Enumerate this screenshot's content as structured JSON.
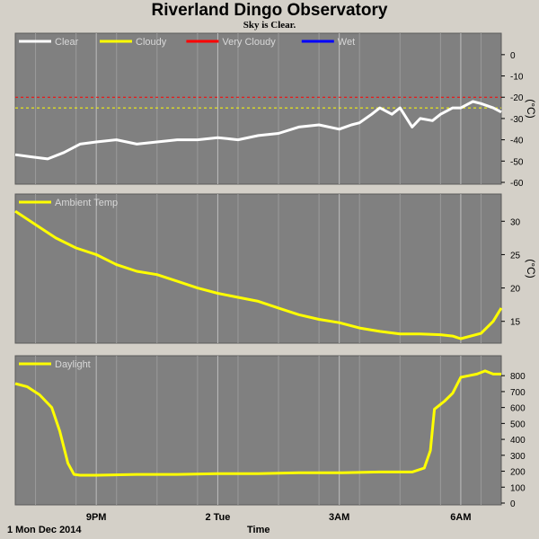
{
  "title": "Riverland Dingo Observatory",
  "subtitle": "Sky is Clear.",
  "footer": {
    "date_label": "1 Mon Dec 2014",
    "axis_label": "Time"
  },
  "colors": {
    "background": "#d4d0c8",
    "plot_background": "#808080",
    "grid": "#bdbdbd",
    "clear": "#ffffff",
    "cloudy": "#ffff00",
    "very_cloudy": "#ff0000",
    "wet": "#0000ff",
    "ambient": "#ffff00",
    "daylight": "#ffff00"
  },
  "chart_data": [
    {
      "type": "line",
      "name": "sky",
      "x_ticks": [
        "9PM",
        "2 Tue",
        "3AM",
        "6AM"
      ],
      "x_tick_hours": [
        21,
        24,
        27,
        30
      ],
      "xlim": [
        19.0,
        31.0
      ],
      "ylim": [
        -60,
        5
      ],
      "y_ticks": [
        0,
        -10,
        -20,
        -30,
        -40,
        -50,
        -60
      ],
      "unit": "(°C)",
      "legend": [
        "Clear",
        "Cloudy",
        "Very Cloudy",
        "Wet"
      ],
      "thresholds": [
        {
          "label": "Very Cloudy",
          "value": -20
        },
        {
          "label": "Cloudy",
          "value": -25
        }
      ],
      "series": [
        {
          "name": "Clear",
          "x": [
            19.0,
            19.4,
            19.8,
            20.2,
            20.6,
            21.0,
            21.5,
            22.0,
            22.5,
            23.0,
            23.5,
            24.0,
            24.5,
            25.0,
            25.5,
            26.0,
            26.5,
            27.0,
            27.3,
            27.5,
            27.8,
            28.0,
            28.3,
            28.5,
            28.8,
            29.0,
            29.3,
            29.5,
            29.8,
            30.0,
            30.3,
            30.5,
            30.8,
            31.0
          ],
          "y": [
            -47,
            -48,
            -49,
            -46,
            -42,
            -41,
            -40,
            -42,
            -41,
            -40,
            -40,
            -39,
            -40,
            -38,
            -37,
            -34,
            -33,
            -35,
            -33,
            -32,
            -28,
            -25,
            -28,
            -25,
            -34,
            -30,
            -31,
            -28,
            -25,
            -25,
            -22,
            -23,
            -25,
            -27
          ]
        }
      ]
    },
    {
      "type": "line",
      "name": "ambient",
      "x_ticks": [
        "9PM",
        "2 Tue",
        "3AM",
        "6AM"
      ],
      "xlim": [
        19.0,
        31.0
      ],
      "ylim": [
        12,
        33
      ],
      "y_ticks": [
        30,
        25,
        20,
        15
      ],
      "unit": "(°C)",
      "legend": [
        "Ambient Temp"
      ],
      "series": [
        {
          "name": "Ambient Temp",
          "x": [
            19.0,
            19.5,
            20.0,
            20.5,
            21.0,
            21.5,
            22.0,
            22.5,
            23.0,
            23.5,
            24.0,
            24.5,
            25.0,
            25.5,
            26.0,
            26.5,
            27.0,
            27.5,
            28.0,
            28.5,
            29.0,
            29.5,
            29.8,
            30.0,
            30.5,
            30.8,
            31.0
          ],
          "y": [
            31.5,
            29.5,
            27.5,
            26.0,
            25.0,
            23.5,
            22.5,
            22.0,
            21.0,
            20.0,
            19.2,
            18.6,
            18.0,
            17.0,
            16.0,
            15.3,
            14.8,
            14.0,
            13.5,
            13.1,
            13.1,
            13.0,
            12.8,
            12.4,
            13.2,
            15.0,
            17.0
          ]
        }
      ]
    },
    {
      "type": "line",
      "name": "daylight",
      "x_ticks": [
        "9PM",
        "2 Tue",
        "3AM",
        "6AM"
      ],
      "xlim": [
        19.0,
        31.0
      ],
      "ylim": [
        0,
        880
      ],
      "y_ticks": [
        800,
        700,
        600,
        500,
        400,
        300,
        200,
        100,
        0
      ],
      "unit": "",
      "legend": [
        "Daylight"
      ],
      "series": [
        {
          "name": "Daylight",
          "x": [
            19.0,
            19.3,
            19.6,
            19.9,
            20.1,
            20.3,
            20.45,
            20.6,
            21.0,
            22.0,
            23.0,
            24.0,
            25.0,
            26.0,
            27.0,
            28.0,
            28.8,
            29.1,
            29.25,
            29.35,
            29.45,
            29.6,
            29.8,
            30.0,
            30.2,
            30.4,
            30.6,
            30.8,
            31.0
          ],
          "y": [
            750,
            730,
            680,
            600,
            450,
            250,
            180,
            175,
            175,
            180,
            180,
            185,
            185,
            190,
            190,
            195,
            195,
            220,
            330,
            590,
            610,
            640,
            690,
            790,
            800,
            810,
            830,
            810,
            810
          ]
        }
      ]
    }
  ]
}
